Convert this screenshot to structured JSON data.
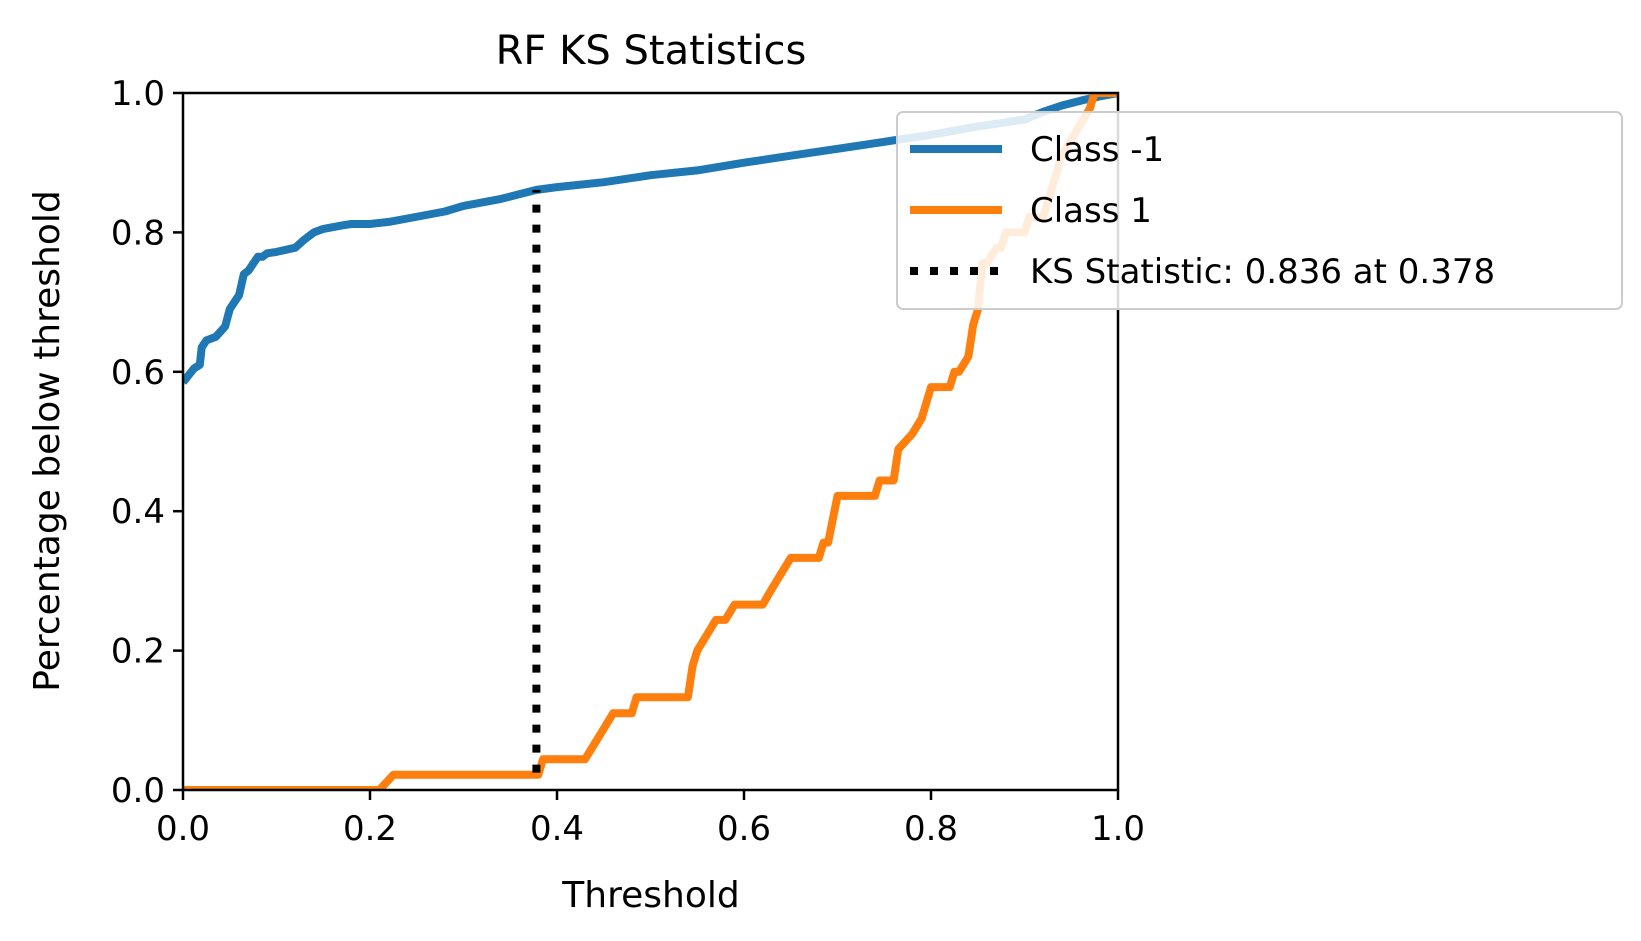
{
  "chart_data": {
    "type": "line",
    "title": "RF KS Statistics",
    "xlabel": "Threshold",
    "ylabel": "Percentage below threshold",
    "xlim": [
      0.0,
      1.0
    ],
    "ylim": [
      0.0,
      1.0
    ],
    "xticks": [
      "0.0",
      "0.2",
      "0.4",
      "0.6",
      "0.8",
      "1.0"
    ],
    "yticks": [
      "0.0",
      "0.2",
      "0.4",
      "0.6",
      "0.8",
      "1.0"
    ],
    "grid": false,
    "legend_position": "top-right",
    "series": [
      {
        "name": "Class -1",
        "color": "#1f77b4",
        "style": "solid",
        "x": [
          0.0,
          0.012,
          0.018,
          0.02,
          0.025,
          0.035,
          0.045,
          0.05,
          0.055,
          0.06,
          0.065,
          0.07,
          0.075,
          0.08,
          0.085,
          0.09,
          0.1,
          0.12,
          0.13,
          0.135,
          0.14,
          0.15,
          0.17,
          0.18,
          0.2,
          0.22,
          0.24,
          0.26,
          0.28,
          0.3,
          0.32,
          0.34,
          0.36,
          0.378,
          0.4,
          0.45,
          0.5,
          0.55,
          0.6,
          0.65,
          0.7,
          0.75,
          0.8,
          0.85,
          0.9,
          0.92,
          0.94,
          0.96,
          0.98,
          1.0
        ],
        "y": [
          0.585,
          0.605,
          0.61,
          0.635,
          0.645,
          0.65,
          0.665,
          0.69,
          0.7,
          0.71,
          0.74,
          0.745,
          0.755,
          0.765,
          0.765,
          0.77,
          0.772,
          0.778,
          0.79,
          0.795,
          0.8,
          0.805,
          0.81,
          0.812,
          0.812,
          0.815,
          0.82,
          0.825,
          0.83,
          0.838,
          0.843,
          0.848,
          0.855,
          0.861,
          0.865,
          0.872,
          0.882,
          0.889,
          0.9,
          0.91,
          0.92,
          0.93,
          0.94,
          0.952,
          0.962,
          0.973,
          0.982,
          0.989,
          0.995,
          1.0
        ]
      },
      {
        "name": "Class 1",
        "color": "#ff7f0e",
        "style": "solid",
        "x": [
          0.0,
          0.21,
          0.225,
          0.38,
          0.385,
          0.43,
          0.44,
          0.45,
          0.46,
          0.48,
          0.485,
          0.54,
          0.545,
          0.55,
          0.56,
          0.57,
          0.58,
          0.59,
          0.6,
          0.62,
          0.63,
          0.64,
          0.65,
          0.66,
          0.68,
          0.685,
          0.69,
          0.7,
          0.71,
          0.74,
          0.745,
          0.76,
          0.765,
          0.78,
          0.79,
          0.8,
          0.82,
          0.825,
          0.83,
          0.84,
          0.845,
          0.85,
          0.855,
          0.86,
          0.87,
          0.875,
          0.88,
          0.9,
          0.905,
          0.92,
          0.93,
          0.94,
          0.95,
          0.96,
          0.97,
          0.975,
          1.0
        ],
        "y": [
          0.0,
          0.0,
          0.022,
          0.022,
          0.044,
          0.044,
          0.066,
          0.088,
          0.11,
          0.11,
          0.133,
          0.133,
          0.178,
          0.2,
          0.222,
          0.244,
          0.244,
          0.266,
          0.266,
          0.266,
          0.289,
          0.311,
          0.333,
          0.333,
          0.333,
          0.355,
          0.355,
          0.422,
          0.422,
          0.422,
          0.444,
          0.444,
          0.489,
          0.511,
          0.533,
          0.578,
          0.578,
          0.6,
          0.6,
          0.622,
          0.667,
          0.689,
          0.756,
          0.756,
          0.778,
          0.778,
          0.8,
          0.8,
          0.822,
          0.822,
          0.867,
          0.911,
          0.933,
          0.956,
          0.978,
          1.0,
          1.0
        ]
      },
      {
        "name": "KS Statistic: 0.836 at 0.378",
        "color": "#000000",
        "style": "dotted",
        "x": [
          0.378,
          0.378
        ],
        "y": [
          0.025,
          0.861
        ]
      }
    ]
  }
}
